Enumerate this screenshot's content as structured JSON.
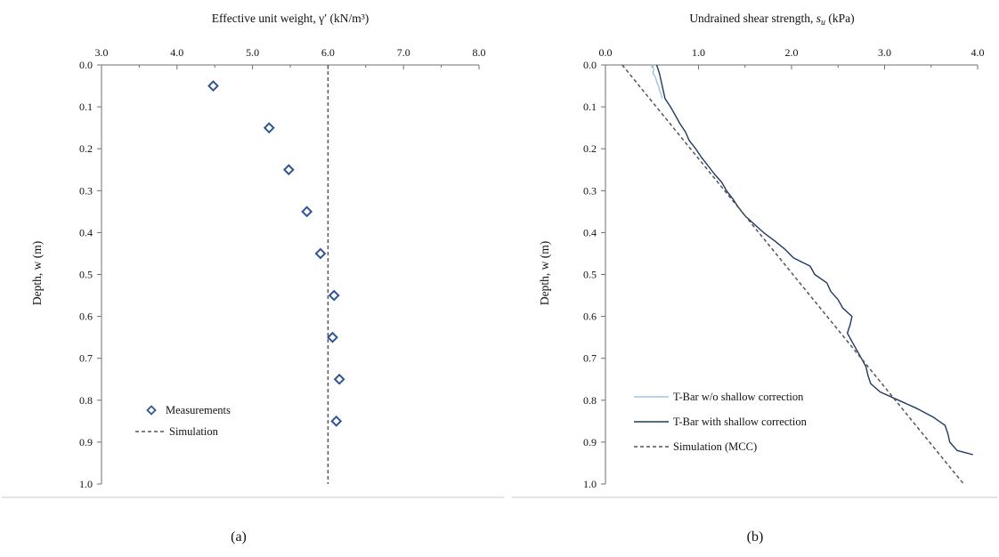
{
  "chart_data": [
    {
      "type": "scatter",
      "panel": "(a)",
      "xlabel": "Effective unit weight, γ′ (kN/m³)",
      "ylabel": "Depth, w (m)",
      "xlim": [
        3.0,
        8.0
      ],
      "ylim": [
        0.0,
        1.0
      ],
      "y_inverted": true,
      "x_axis_position": "top",
      "xticks": [
        "3.0",
        "4.0",
        "5.0",
        "6.0",
        "7.0",
        "8.0"
      ],
      "yticks": [
        "0.0",
        "0.1",
        "0.2",
        "0.3",
        "0.4",
        "0.5",
        "0.6",
        "0.7",
        "0.8",
        "0.9",
        "1.0"
      ],
      "legend_position": "bottom-left",
      "series": [
        {
          "name": "Measurements",
          "marker": "diamond",
          "color": "#2f5597",
          "points": [
            {
              "x": 4.48,
              "y": 0.05
            },
            {
              "x": 5.22,
              "y": 0.15
            },
            {
              "x": 5.48,
              "y": 0.25
            },
            {
              "x": 5.72,
              "y": 0.35
            },
            {
              "x": 5.9,
              "y": 0.45
            },
            {
              "x": 6.08,
              "y": 0.55
            },
            {
              "x": 6.06,
              "y": 0.65
            },
            {
              "x": 6.15,
              "y": 0.75
            },
            {
              "x": 6.11,
              "y": 0.85
            }
          ]
        },
        {
          "name": "Simulation",
          "line": "dashed",
          "color": "#555555",
          "points": [
            {
              "x": 6.0,
              "y": 0.0
            },
            {
              "x": 6.0,
              "y": 1.0
            }
          ]
        }
      ]
    },
    {
      "type": "line",
      "panel": "(b)",
      "xlabel_prefix": "Undrained shear strength, ",
      "xlabel_symbol": "s",
      "xlabel_sub": "u",
      "xlabel_suffix": " (kPa)",
      "ylabel": "Depth, w (m)",
      "xlim": [
        0.0,
        4.0
      ],
      "ylim": [
        0.0,
        1.0
      ],
      "y_inverted": true,
      "x_axis_position": "top",
      "xticks": [
        "0.0",
        "1.0",
        "2.0",
        "3.0",
        "4.0"
      ],
      "yticks": [
        "0.0",
        "0.1",
        "0.2",
        "0.3",
        "0.4",
        "0.5",
        "0.6",
        "0.7",
        "0.8",
        "0.9",
        "1.0"
      ],
      "legend_position": "bottom-left",
      "series": [
        {
          "name": "T-Bar w/o shallow correction",
          "color": "#9dc3e6",
          "points": [
            {
              "x": 0.5,
              "y": 0.0
            },
            {
              "x": 0.52,
              "y": 0.01
            },
            {
              "x": 0.51,
              "y": 0.02
            },
            {
              "x": 0.54,
              "y": 0.03
            },
            {
              "x": 0.55,
              "y": 0.04
            },
            {
              "x": 0.57,
              "y": 0.05
            },
            {
              "x": 0.58,
              "y": 0.06
            },
            {
              "x": 0.6,
              "y": 0.07
            },
            {
              "x": 0.61,
              "y": 0.08
            }
          ]
        },
        {
          "name": "T-Bar with shallow correction",
          "color": "#1f3864",
          "points": [
            {
              "x": 0.55,
              "y": 0.0
            },
            {
              "x": 0.58,
              "y": 0.02
            },
            {
              "x": 0.6,
              "y": 0.04
            },
            {
              "x": 0.62,
              "y": 0.06
            },
            {
              "x": 0.64,
              "y": 0.08
            },
            {
              "x": 0.7,
              "y": 0.1
            },
            {
              "x": 0.75,
              "y": 0.12
            },
            {
              "x": 0.8,
              "y": 0.14
            },
            {
              "x": 0.86,
              "y": 0.16
            },
            {
              "x": 0.9,
              "y": 0.18
            },
            {
              "x": 0.97,
              "y": 0.2
            },
            {
              "x": 1.03,
              "y": 0.22
            },
            {
              "x": 1.1,
              "y": 0.24
            },
            {
              "x": 1.17,
              "y": 0.26
            },
            {
              "x": 1.25,
              "y": 0.28
            },
            {
              "x": 1.3,
              "y": 0.3
            },
            {
              "x": 1.37,
              "y": 0.32
            },
            {
              "x": 1.43,
              "y": 0.34
            },
            {
              "x": 1.5,
              "y": 0.36
            },
            {
              "x": 1.6,
              "y": 0.38
            },
            {
              "x": 1.7,
              "y": 0.4
            },
            {
              "x": 1.82,
              "y": 0.42
            },
            {
              "x": 1.93,
              "y": 0.44
            },
            {
              "x": 2.02,
              "y": 0.46
            },
            {
              "x": 2.2,
              "y": 0.48
            },
            {
              "x": 2.25,
              "y": 0.5
            },
            {
              "x": 2.38,
              "y": 0.52
            },
            {
              "x": 2.42,
              "y": 0.54
            },
            {
              "x": 2.5,
              "y": 0.56
            },
            {
              "x": 2.55,
              "y": 0.58
            },
            {
              "x": 2.65,
              "y": 0.6
            },
            {
              "x": 2.63,
              "y": 0.62
            },
            {
              "x": 2.6,
              "y": 0.64
            },
            {
              "x": 2.65,
              "y": 0.66
            },
            {
              "x": 2.7,
              "y": 0.68
            },
            {
              "x": 2.75,
              "y": 0.7
            },
            {
              "x": 2.8,
              "y": 0.72
            },
            {
              "x": 2.82,
              "y": 0.74
            },
            {
              "x": 2.85,
              "y": 0.76
            },
            {
              "x": 2.95,
              "y": 0.78
            },
            {
              "x": 3.15,
              "y": 0.8
            },
            {
              "x": 3.35,
              "y": 0.82
            },
            {
              "x": 3.52,
              "y": 0.84
            },
            {
              "x": 3.65,
              "y": 0.86
            },
            {
              "x": 3.68,
              "y": 0.88
            },
            {
              "x": 3.7,
              "y": 0.9
            },
            {
              "x": 3.78,
              "y": 0.92
            },
            {
              "x": 3.95,
              "y": 0.93
            }
          ]
        },
        {
          "name": "Simulation (MCC)",
          "line": "dashed",
          "color": "#555555",
          "points": [
            {
              "x": 0.18,
              "y": 0.0
            },
            {
              "x": 3.85,
              "y": 1.0
            }
          ]
        }
      ]
    }
  ]
}
